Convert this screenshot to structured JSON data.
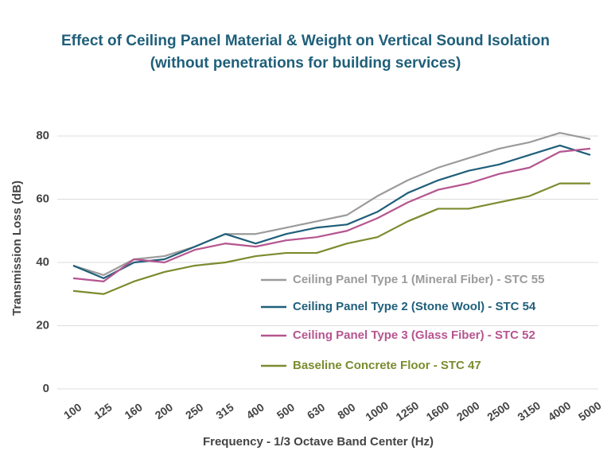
{
  "chart_data": {
    "type": "line",
    "title": "Effect of Ceiling Panel Material & Weight on Vertical Sound Isolation",
    "subtitle": "(without penetrations for building services)",
    "x_label": "Frequency - 1/3 Octave Band Center (Hz)",
    "y_label": "Transmission Loss (dB)",
    "categories": [
      "100",
      "125",
      "160",
      "200",
      "250",
      "315",
      "400",
      "500",
      "630",
      "800",
      "1000",
      "1250",
      "1600",
      "2000",
      "2500",
      "3150",
      "4000",
      "5000"
    ],
    "series": [
      {
        "name": "Ceiling Panel Type 1 (Mineral Fiber) - STC 55",
        "color": "#9b9b9b",
        "values": [
          39,
          36,
          41,
          42,
          45,
          49,
          49,
          51,
          53,
          55,
          61,
          66,
          70,
          73,
          76,
          78,
          81,
          79
        ]
      },
      {
        "name": "Ceiling Panel Type 2 (Stone Wool) - STC 54",
        "color": "#1f5f7a",
        "values": [
          39,
          35,
          40,
          41,
          45,
          49,
          46,
          49,
          51,
          52,
          56,
          62,
          66,
          69,
          71,
          74,
          77,
          74
        ]
      },
      {
        "name": "Ceiling Panel Type 3 (Glass Fiber) - STC 52",
        "color": "#b5558f",
        "values": [
          35,
          34,
          41,
          40,
          44,
          46,
          45,
          47,
          48,
          50,
          54,
          59,
          63,
          65,
          68,
          70,
          75,
          76
        ]
      },
      {
        "name": "Baseline Concrete Floor - STC 47",
        "color": "#7a8c2e",
        "values": [
          31,
          30,
          34,
          37,
          39,
          40,
          42,
          43,
          43,
          46,
          48,
          53,
          57,
          57,
          59,
          61,
          65,
          65
        ]
      }
    ],
    "ylim": [
      0,
      85
    ],
    "yticks": [
      0,
      20,
      40,
      60,
      80
    ],
    "grid": true,
    "legend": "inside"
  }
}
